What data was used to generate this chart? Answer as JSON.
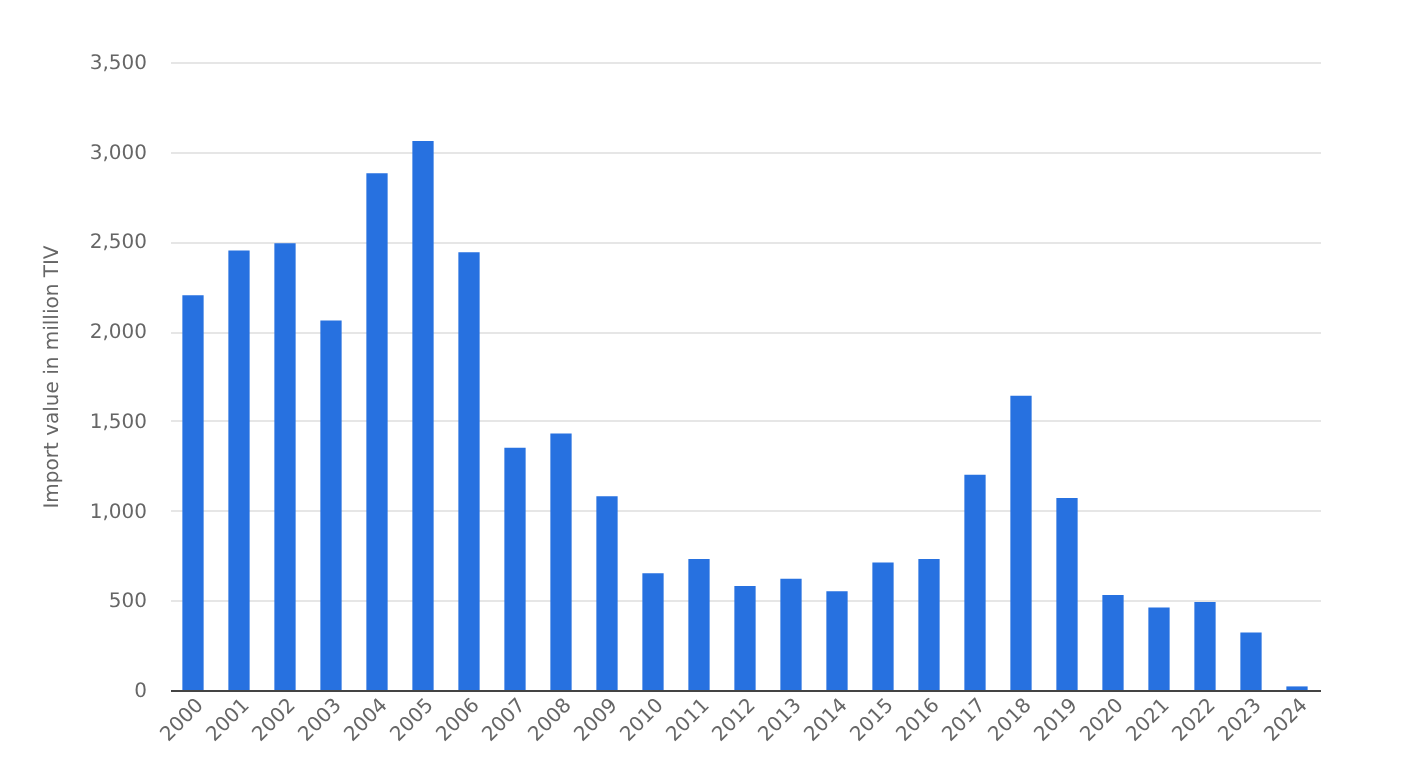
{
  "chart_data": {
    "type": "bar",
    "ylabel": "Import value in million TIV",
    "categories": [
      "2000",
      "2001",
      "2002",
      "2003",
      "2004",
      "2005",
      "2006",
      "2007",
      "2008",
      "2009",
      "2010",
      "2011",
      "2012",
      "2013",
      "2014",
      "2015",
      "2016",
      "2017",
      "2018",
      "2019",
      "2020",
      "2021",
      "2022",
      "2023",
      "2024"
    ],
    "values": [
      2200,
      2450,
      2490,
      2060,
      2880,
      3060,
      2440,
      1350,
      1430,
      1080,
      650,
      730,
      580,
      620,
      550,
      710,
      730,
      1200,
      1640,
      1070,
      530,
      460,
      490,
      320,
      20
    ],
    "color": "#2771e0",
    "ylim": [
      0,
      3500
    ],
    "yticks": [
      0,
      500,
      {
        "value": 1000,
        "label": "1,000"
      },
      {
        "value": 1500,
        "label": "1,500"
      },
      {
        "value": 2000,
        "label": "2,000"
      },
      {
        "value": 2500,
        "label": "2,500"
      },
      {
        "value": 3000,
        "label": "3,000"
      },
      {
        "value": 3500,
        "label": "3,500"
      }
    ],
    "grid": "y"
  }
}
